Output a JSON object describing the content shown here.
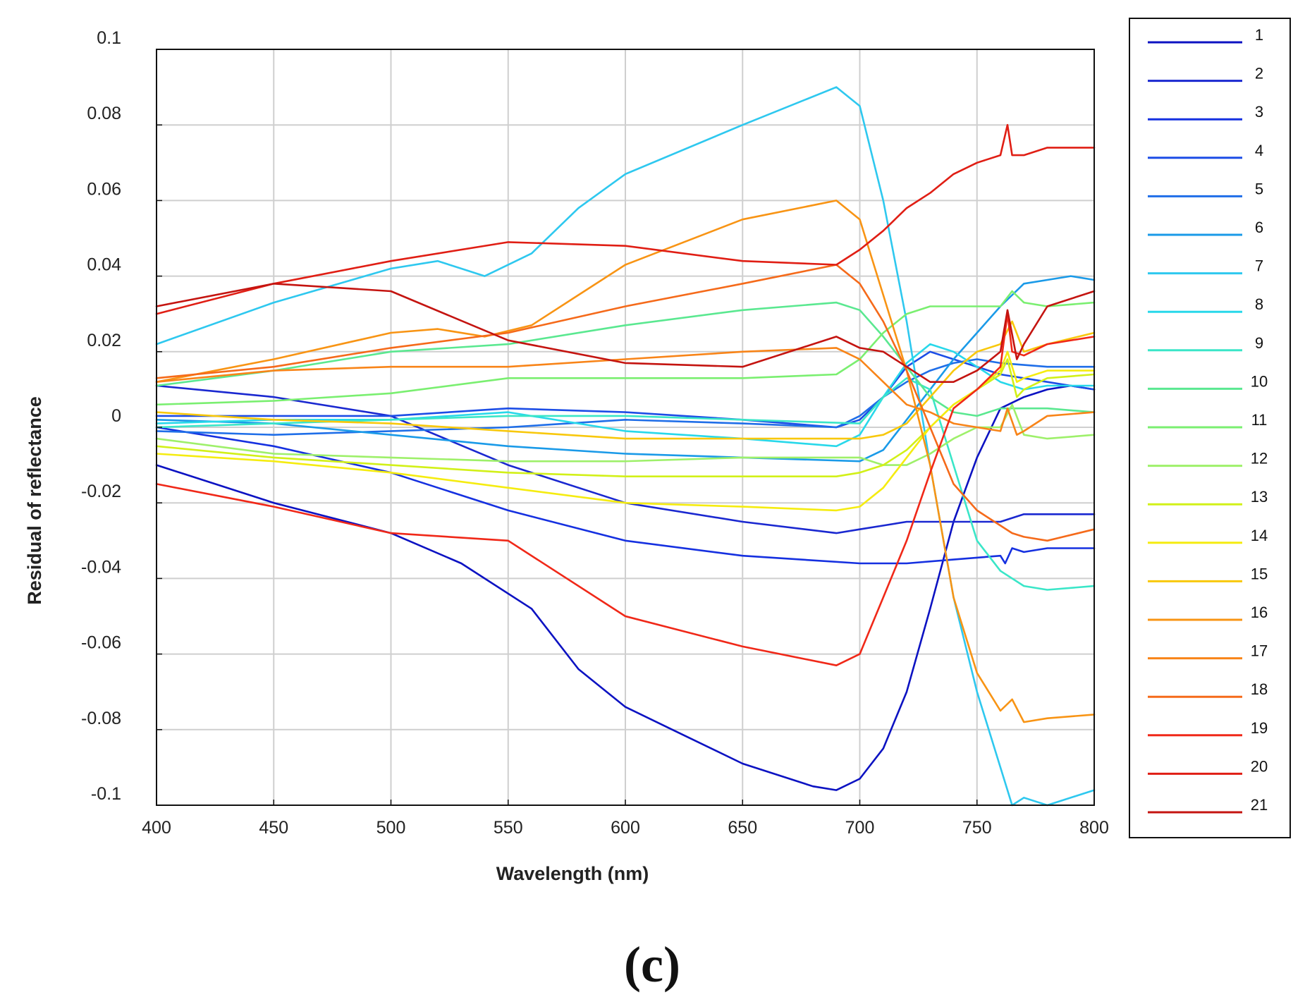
{
  "panel_label": "(c)",
  "chart_data": {
    "type": "line",
    "title": "",
    "xlabel": "Wavelength (nm)",
    "ylabel": "Residual of reflectance",
    "xlim": [
      400,
      800
    ],
    "ylim": [
      -0.1,
      0.1
    ],
    "grid": true,
    "legend_position": "right-outside",
    "xticks": [
      400,
      450,
      500,
      550,
      600,
      650,
      700,
      750,
      800
    ],
    "xtick_labels": [
      "400",
      "450",
      "500",
      "550",
      "600",
      "650",
      "700",
      "750",
      "800"
    ],
    "yticks": [
      0.1,
      0.08,
      0.06,
      0.04,
      0.02,
      0,
      -0.02,
      -0.04,
      -0.06,
      -0.08,
      -0.1
    ],
    "ytick_labels": [
      "0.1",
      "0.08",
      "0.06",
      "0.04",
      "0.02",
      "0",
      "-0.02",
      "-0.04",
      "-0.06",
      "-0.08",
      "-0.1"
    ],
    "series": [
      {
        "name": "1",
        "color": "#0c12c2",
        "x": [
          400,
          450,
          500,
          530,
          560,
          580,
          600,
          620,
          650,
          680,
          690,
          700,
          710,
          720,
          730,
          740,
          750,
          760,
          770,
          780,
          790,
          800
        ],
        "y": [
          -0.01,
          -0.02,
          -0.028,
          -0.036,
          -0.048,
          -0.064,
          -0.074,
          -0.08,
          -0.089,
          -0.095,
          -0.096,
          -0.093,
          -0.085,
          -0.07,
          -0.048,
          -0.025,
          -0.008,
          0.005,
          0.008,
          0.01,
          0.011,
          0.01
        ]
      },
      {
        "name": "2",
        "color": "#1a28d0",
        "x": [
          400,
          450,
          500,
          550,
          600,
          650,
          690,
          700,
          710,
          720,
          730,
          740,
          750,
          760,
          770,
          780,
          800
        ],
        "y": [
          0.011,
          0.008,
          0.003,
          -0.01,
          -0.02,
          -0.025,
          -0.028,
          -0.027,
          -0.026,
          -0.025,
          -0.025,
          -0.025,
          -0.025,
          -0.025,
          -0.023,
          -0.023,
          -0.023
        ]
      },
      {
        "name": "3",
        "color": "#1530e0",
        "x": [
          400,
          450,
          500,
          550,
          600,
          650,
          700,
          720,
          740,
          760,
          762,
          765,
          770,
          780,
          800
        ],
        "y": [
          0,
          -0.005,
          -0.012,
          -0.022,
          -0.03,
          -0.034,
          -0.036,
          -0.036,
          -0.035,
          -0.034,
          -0.036,
          -0.032,
          -0.033,
          -0.032,
          -0.032
        ]
      },
      {
        "name": "4",
        "color": "#1c4de6",
        "x": [
          400,
          450,
          500,
          550,
          600,
          650,
          690,
          700,
          710,
          720,
          730,
          740,
          750,
          760,
          780,
          800
        ],
        "y": [
          0.003,
          0.003,
          0.003,
          0.005,
          0.004,
          0.002,
          0.0,
          0.002,
          0.008,
          0.016,
          0.02,
          0.018,
          0.016,
          0.014,
          0.012,
          0.01
        ]
      },
      {
        "name": "5",
        "color": "#1f6ee8",
        "x": [
          400,
          450,
          500,
          550,
          600,
          650,
          690,
          700,
          710,
          720,
          730,
          740,
          750,
          760,
          780,
          800
        ],
        "y": [
          -0.001,
          -0.002,
          -0.001,
          0.0,
          0.002,
          0.001,
          0.0,
          0.003,
          0.008,
          0.012,
          0.015,
          0.017,
          0.018,
          0.017,
          0.016,
          0.016
        ]
      },
      {
        "name": "6",
        "color": "#1a9ae8",
        "x": [
          400,
          450,
          500,
          550,
          600,
          650,
          700,
          710,
          720,
          730,
          740,
          750,
          760,
          770,
          780,
          790,
          800
        ],
        "y": [
          0.002,
          0.001,
          -0.002,
          -0.005,
          -0.007,
          -0.008,
          -0.009,
          -0.006,
          0.002,
          0.01,
          0.018,
          0.025,
          0.032,
          0.038,
          0.039,
          0.04,
          0.039
        ]
      },
      {
        "name": "7",
        "color": "#2ec8ef",
        "x": [
          400,
          450,
          500,
          520,
          540,
          560,
          580,
          600,
          650,
          690,
          700,
          710,
          720,
          730,
          740,
          750,
          760,
          765,
          770,
          780,
          800
        ],
        "y": [
          0.022,
          0.033,
          0.042,
          0.044,
          0.04,
          0.046,
          0.058,
          0.067,
          0.08,
          0.09,
          0.085,
          0.06,
          0.028,
          -0.01,
          -0.045,
          -0.07,
          -0.09,
          -0.1,
          -0.098,
          -0.1,
          -0.096
        ]
      },
      {
        "name": "8",
        "color": "#28d8ea",
        "x": [
          400,
          450,
          500,
          550,
          600,
          650,
          690,
          700,
          710,
          720,
          730,
          740,
          750,
          760,
          770,
          780,
          800
        ],
        "y": [
          0.001,
          0.002,
          0.002,
          0.004,
          -0.001,
          -0.003,
          -0.005,
          -0.002,
          0.008,
          0.017,
          0.022,
          0.02,
          0.016,
          0.012,
          0.01,
          0.011,
          0.011
        ]
      },
      {
        "name": "9",
        "color": "#3ae6c8",
        "x": [
          400,
          450,
          500,
          550,
          600,
          650,
          700,
          710,
          720,
          730,
          740,
          750,
          760,
          770,
          780,
          800
        ],
        "y": [
          0.0,
          0.001,
          0.002,
          0.003,
          0.003,
          0.002,
          0.001,
          0.008,
          0.013,
          0.01,
          -0.01,
          -0.03,
          -0.038,
          -0.042,
          -0.043,
          -0.042
        ]
      },
      {
        "name": "10",
        "color": "#5ae890",
        "x": [
          400,
          450,
          500,
          550,
          600,
          650,
          690,
          700,
          710,
          720,
          730,
          740,
          750,
          760,
          780,
          800
        ],
        "y": [
          0.011,
          0.015,
          0.02,
          0.022,
          0.027,
          0.031,
          0.033,
          0.031,
          0.024,
          0.016,
          0.008,
          0.004,
          0.003,
          0.005,
          0.005,
          0.004
        ]
      },
      {
        "name": "11",
        "color": "#7aef70",
        "x": [
          400,
          450,
          500,
          550,
          600,
          650,
          690,
          700,
          710,
          720,
          730,
          740,
          750,
          760,
          765,
          770,
          780,
          800
        ],
        "y": [
          0.006,
          0.007,
          0.009,
          0.013,
          0.013,
          0.013,
          0.014,
          0.018,
          0.025,
          0.03,
          0.032,
          0.032,
          0.032,
          0.032,
          0.036,
          0.033,
          0.032,
          0.033
        ]
      },
      {
        "name": "12",
        "color": "#9ef06a",
        "x": [
          400,
          450,
          500,
          550,
          600,
          650,
          700,
          710,
          720,
          730,
          740,
          750,
          760,
          765,
          770,
          780,
          800
        ],
        "y": [
          -0.003,
          -0.007,
          -0.008,
          -0.009,
          -0.009,
          -0.008,
          -0.008,
          -0.01,
          -0.01,
          -0.007,
          -0.003,
          0.0,
          0.0,
          0.006,
          -0.002,
          -0.003,
          -0.002
        ]
      },
      {
        "name": "13",
        "color": "#d2f018",
        "x": [
          400,
          450,
          500,
          550,
          600,
          650,
          690,
          700,
          710,
          720,
          730,
          740,
          750,
          760,
          763,
          767,
          770,
          780,
          800
        ],
        "y": [
          -0.005,
          -0.008,
          -0.01,
          -0.012,
          -0.013,
          -0.013,
          -0.013,
          -0.012,
          -0.01,
          -0.006,
          0.0,
          0.006,
          0.01,
          0.014,
          0.018,
          0.008,
          0.01,
          0.013,
          0.014
        ]
      },
      {
        "name": "14",
        "color": "#f5ec10",
        "x": [
          400,
          450,
          500,
          550,
          600,
          650,
          690,
          700,
          710,
          720,
          730,
          740,
          750,
          760,
          763,
          767,
          770,
          780,
          800
        ],
        "y": [
          -0.007,
          -0.009,
          -0.012,
          -0.016,
          -0.02,
          -0.021,
          -0.022,
          -0.021,
          -0.016,
          -0.008,
          0.0,
          0.006,
          0.01,
          0.015,
          0.02,
          0.012,
          0.013,
          0.015,
          0.015
        ]
      },
      {
        "name": "15",
        "color": "#f8c80c",
        "x": [
          400,
          450,
          500,
          550,
          600,
          650,
          690,
          700,
          710,
          720,
          730,
          740,
          750,
          760,
          765,
          770,
          780,
          800
        ],
        "y": [
          0.004,
          0.002,
          0.001,
          -0.001,
          -0.003,
          -0.003,
          -0.003,
          -0.003,
          -0.002,
          0.001,
          0.008,
          0.015,
          0.02,
          0.022,
          0.028,
          0.02,
          0.022,
          0.025
        ]
      },
      {
        "name": "16",
        "color": "#f89414",
        "x": [
          400,
          450,
          500,
          520,
          540,
          560,
          580,
          600,
          650,
          690,
          700,
          710,
          720,
          730,
          740,
          750,
          760,
          765,
          770,
          780,
          800
        ],
        "y": [
          0.012,
          0.018,
          0.025,
          0.026,
          0.024,
          0.027,
          0.035,
          0.043,
          0.055,
          0.06,
          0.055,
          0.035,
          0.015,
          -0.01,
          -0.045,
          -0.065,
          -0.075,
          -0.072,
          -0.078,
          -0.077,
          -0.076
        ]
      },
      {
        "name": "17",
        "color": "#f88418",
        "x": [
          400,
          450,
          500,
          550,
          600,
          650,
          690,
          700,
          710,
          720,
          730,
          740,
          750,
          760,
          763,
          767,
          770,
          780,
          800
        ],
        "y": [
          0.012,
          0.015,
          0.016,
          0.016,
          0.018,
          0.02,
          0.021,
          0.018,
          0.012,
          0.006,
          0.004,
          0.001,
          0.0,
          -0.001,
          0.005,
          -0.002,
          -0.001,
          0.003,
          0.004
        ]
      },
      {
        "name": "18",
        "color": "#f56a1a",
        "x": [
          400,
          450,
          500,
          550,
          600,
          650,
          690,
          700,
          710,
          720,
          730,
          740,
          750,
          760,
          765,
          770,
          780,
          800
        ],
        "y": [
          0.013,
          0.016,
          0.021,
          0.025,
          0.032,
          0.038,
          0.043,
          0.038,
          0.028,
          0.015,
          0.0,
          -0.015,
          -0.022,
          -0.026,
          -0.028,
          -0.029,
          -0.03,
          -0.027
        ]
      },
      {
        "name": "19",
        "color": "#f02818",
        "x": [
          400,
          450,
          500,
          550,
          600,
          650,
          690,
          700,
          710,
          720,
          730,
          740,
          750,
          760,
          763,
          765,
          770,
          780,
          800
        ],
        "y": [
          -0.015,
          -0.021,
          -0.028,
          -0.03,
          -0.05,
          -0.058,
          -0.063,
          -0.06,
          -0.045,
          -0.03,
          -0.012,
          0.005,
          0.01,
          0.016,
          0.03,
          0.02,
          0.019,
          0.022,
          0.024
        ]
      },
      {
        "name": "20",
        "color": "#e01e14",
        "x": [
          400,
          450,
          500,
          550,
          600,
          650,
          690,
          700,
          710,
          720,
          730,
          740,
          750,
          760,
          763,
          765,
          770,
          780,
          800
        ],
        "y": [
          0.03,
          0.038,
          0.044,
          0.049,
          0.048,
          0.044,
          0.043,
          0.047,
          0.052,
          0.058,
          0.062,
          0.067,
          0.07,
          0.072,
          0.08,
          0.072,
          0.072,
          0.074,
          0.074
        ]
      },
      {
        "name": "21",
        "color": "#c41410",
        "x": [
          400,
          450,
          500,
          550,
          600,
          650,
          690,
          700,
          710,
          720,
          730,
          740,
          750,
          760,
          763,
          767,
          770,
          780,
          800
        ],
        "y": [
          0.032,
          0.038,
          0.036,
          0.023,
          0.017,
          0.016,
          0.024,
          0.021,
          0.02,
          0.016,
          0.012,
          0.012,
          0.015,
          0.02,
          0.031,
          0.018,
          0.022,
          0.032,
          0.036
        ]
      }
    ]
  }
}
